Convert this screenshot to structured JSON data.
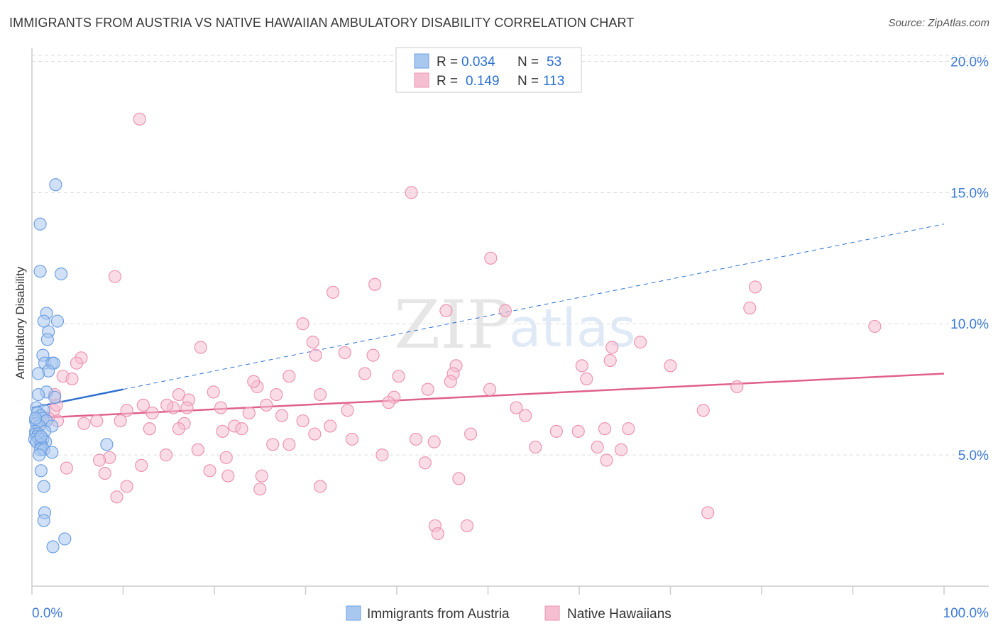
{
  "title": "IMMIGRANTS FROM AUSTRIA VS NATIVE HAWAIIAN AMBULATORY DISABILITY CORRELATION CHART",
  "source": "Source: ZipAtlas.com",
  "watermark": {
    "zip": "ZIP",
    "atlas": "atlas"
  },
  "legend": {
    "r_label": "R =",
    "n_label": "N =",
    "rows": [
      {
        "r": "0.034",
        "n": "53"
      },
      {
        "r": "0.149",
        "n": "113"
      }
    ]
  },
  "chart_data": {
    "type": "scatter",
    "title": "IMMIGRANTS FROM AUSTRIA VS NATIVE HAWAIIAN AMBULATORY DISABILITY CORRELATION CHART",
    "xlabel": "",
    "ylabel": "Ambulatory Disability",
    "xlim": [
      0,
      100
    ],
    "ylim": [
      0,
      20.5
    ],
    "x_tick_labels": [
      "0.0%",
      "100.0%"
    ],
    "y_ticks": [
      5,
      10,
      15,
      20
    ],
    "y_tick_labels": [
      "5.0%",
      "10.0%",
      "15.0%",
      "20.0%"
    ],
    "colors": {
      "austria_fill": "#a9c8f0",
      "austria_stroke": "#6e9fe0",
      "austria_line": "#2e6fd0",
      "hawaiian_fill": "#f6bfd1",
      "hawaiian_stroke": "#eb94b2",
      "hawaiian_line": "#e0608c",
      "tick_text": "#3e7bd6",
      "grid": "#dddddd"
    },
    "series": [
      {
        "name": "Immigrants from Austria",
        "R": 0.034,
        "N": 53,
        "trend": {
          "x": [
            0,
            10
          ],
          "y": [
            6.8,
            7.5
          ]
        },
        "trend_extended": {
          "x": [
            10,
            100
          ],
          "y": [
            7.5,
            13.8
          ]
        },
        "points": [
          [
            2.6,
            15.3
          ],
          [
            0.9,
            13.8
          ],
          [
            0.9,
            12.0
          ],
          [
            3.2,
            11.9
          ],
          [
            1.6,
            10.4
          ],
          [
            1.3,
            10.1
          ],
          [
            2.8,
            10.1
          ],
          [
            1.8,
            9.7
          ],
          [
            1.7,
            9.4
          ],
          [
            1.2,
            8.8
          ],
          [
            1.4,
            8.5
          ],
          [
            2.2,
            8.5
          ],
          [
            2.4,
            8.5
          ],
          [
            1.8,
            8.2
          ],
          [
            0.7,
            8.1
          ],
          [
            1.6,
            7.4
          ],
          [
            0.7,
            7.3
          ],
          [
            2.5,
            7.2
          ],
          [
            0.5,
            6.8
          ],
          [
            1.3,
            6.7
          ],
          [
            0.6,
            6.6
          ],
          [
            1.0,
            6.5
          ],
          [
            1.2,
            6.4
          ],
          [
            0.4,
            6.3
          ],
          [
            1.6,
            6.3
          ],
          [
            0.5,
            6.2
          ],
          [
            0.8,
            6.1
          ],
          [
            2.2,
            6.1
          ],
          [
            0.4,
            5.9
          ],
          [
            1.4,
            5.9
          ],
          [
            0.4,
            5.8
          ],
          [
            0.7,
            5.8
          ],
          [
            0.6,
            5.7
          ],
          [
            1.2,
            5.6
          ],
          [
            0.3,
            5.6
          ],
          [
            0.8,
            5.6
          ],
          [
            1.5,
            5.5
          ],
          [
            0.5,
            5.5
          ],
          [
            1.0,
            5.4
          ],
          [
            8.2,
            5.4
          ],
          [
            1.1,
            5.3
          ],
          [
            0.9,
            5.2
          ],
          [
            1.3,
            5.2
          ],
          [
            2.2,
            5.1
          ],
          [
            0.8,
            5.0
          ],
          [
            1.0,
            4.4
          ],
          [
            1.3,
            3.8
          ],
          [
            1.4,
            2.8
          ],
          [
            1.3,
            2.5
          ],
          [
            3.6,
            1.8
          ],
          [
            2.3,
            1.5
          ],
          [
            0.4,
            6.4
          ],
          [
            1.0,
            5.7
          ]
        ]
      },
      {
        "name": "Native Hawaiians",
        "R": 0.149,
        "N": 113,
        "trend": {
          "x": [
            0,
            100
          ],
          "y": [
            6.4,
            8.1
          ]
        },
        "points": [
          [
            11.8,
            17.8
          ],
          [
            41.6,
            15.0
          ],
          [
            50.3,
            12.5
          ],
          [
            9.1,
            11.8
          ],
          [
            37.6,
            11.5
          ],
          [
            33.0,
            11.2
          ],
          [
            79.3,
            11.4
          ],
          [
            78.7,
            10.6
          ],
          [
            45.4,
            10.5
          ],
          [
            51.9,
            10.5
          ],
          [
            92.4,
            9.9
          ],
          [
            29.7,
            10.0
          ],
          [
            30.8,
            9.3
          ],
          [
            66.7,
            9.3
          ],
          [
            18.5,
            9.1
          ],
          [
            63.6,
            9.1
          ],
          [
            34.3,
            8.9
          ],
          [
            31.1,
            8.8
          ],
          [
            37.4,
            8.8
          ],
          [
            5.4,
            8.7
          ],
          [
            4.9,
            8.5
          ],
          [
            46.5,
            8.4
          ],
          [
            63.4,
            8.6
          ],
          [
            60.3,
            8.4
          ],
          [
            70.0,
            8.4
          ],
          [
            36.5,
            8.1
          ],
          [
            40.2,
            8.0
          ],
          [
            28.2,
            8.0
          ],
          [
            3.4,
            8.0
          ],
          [
            4.4,
            7.9
          ],
          [
            46.2,
            8.1
          ],
          [
            24.7,
            7.6
          ],
          [
            60.8,
            7.9
          ],
          [
            24.3,
            7.8
          ],
          [
            43.4,
            7.5
          ],
          [
            50.2,
            7.5
          ],
          [
            77.3,
            7.6
          ],
          [
            16.1,
            7.3
          ],
          [
            2.5,
            7.3
          ],
          [
            26.8,
            7.3
          ],
          [
            31.6,
            7.3
          ],
          [
            39.7,
            7.2
          ],
          [
            17.2,
            7.1
          ],
          [
            39.1,
            7.0
          ],
          [
            12.2,
            6.9
          ],
          [
            15.5,
            6.8
          ],
          [
            14.8,
            6.9
          ],
          [
            20.7,
            6.8
          ],
          [
            25.7,
            6.9
          ],
          [
            17.0,
            6.8
          ],
          [
            10.4,
            6.7
          ],
          [
            2.4,
            6.7
          ],
          [
            34.6,
            6.7
          ],
          [
            73.6,
            6.7
          ],
          [
            13.2,
            6.6
          ],
          [
            54.1,
            6.5
          ],
          [
            27.4,
            6.5
          ],
          [
            2.8,
            6.3
          ],
          [
            7.1,
            6.3
          ],
          [
            9.7,
            6.3
          ],
          [
            0.8,
            6.2
          ],
          [
            5.7,
            6.2
          ],
          [
            16.7,
            6.2
          ],
          [
            29.7,
            6.3
          ],
          [
            22.2,
            6.1
          ],
          [
            23.0,
            6.0
          ],
          [
            32.7,
            6.1
          ],
          [
            12.9,
            6.0
          ],
          [
            16.1,
            6.0
          ],
          [
            62.8,
            6.0
          ],
          [
            65.4,
            6.0
          ],
          [
            20.9,
            5.9
          ],
          [
            31.0,
            5.8
          ],
          [
            57.5,
            5.9
          ],
          [
            59.9,
            5.9
          ],
          [
            48.1,
            5.8
          ],
          [
            35.1,
            5.6
          ],
          [
            42.1,
            5.6
          ],
          [
            44.1,
            5.5
          ],
          [
            26.4,
            5.4
          ],
          [
            28.2,
            5.4
          ],
          [
            55.2,
            5.3
          ],
          [
            62.0,
            5.3
          ],
          [
            64.6,
            5.2
          ],
          [
            18.2,
            5.2
          ],
          [
            14.7,
            5.0
          ],
          [
            38.4,
            5.0
          ],
          [
            21.3,
            4.9
          ],
          [
            8.5,
            4.9
          ],
          [
            7.4,
            4.8
          ],
          [
            12.0,
            4.6
          ],
          [
            43.1,
            4.7
          ],
          [
            63.0,
            4.8
          ],
          [
            3.8,
            4.5
          ],
          [
            19.5,
            4.4
          ],
          [
            8.0,
            4.3
          ],
          [
            21.5,
            4.2
          ],
          [
            25.2,
            4.2
          ],
          [
            46.8,
            4.1
          ],
          [
            10.4,
            3.8
          ],
          [
            31.6,
            3.8
          ],
          [
            25.0,
            3.7
          ],
          [
            9.3,
            3.4
          ],
          [
            74.1,
            2.8
          ],
          [
            44.2,
            2.3
          ],
          [
            47.7,
            2.3
          ],
          [
            44.5,
            2.0
          ],
          [
            1.8,
            6.4
          ],
          [
            2.7,
            6.9
          ],
          [
            23.8,
            6.6
          ],
          [
            45.9,
            7.8
          ],
          [
            53.1,
            6.8
          ],
          [
            19.9,
            7.4
          ]
        ]
      }
    ]
  },
  "bottom_legend": [
    {
      "label": "Immigrants from Austria"
    },
    {
      "label": "Native Hawaiians"
    }
  ]
}
